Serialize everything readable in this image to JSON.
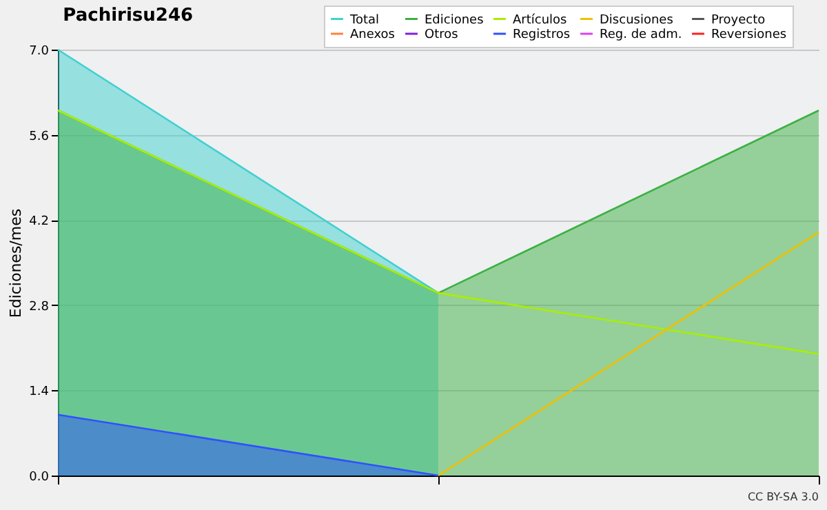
{
  "chart_data": {
    "type": "line",
    "title": "Pachirisu246",
    "ylabel": "Ediciones/mes",
    "categories": [
      null,
      null,
      null
    ],
    "series": [
      {
        "name": "Total",
        "color": "#40d0d0",
        "type": "area",
        "values": [
          7,
          3,
          null
        ]
      },
      {
        "name": "Ediciones",
        "color": "#3cb043",
        "type": "area",
        "values": [
          6,
          3,
          6
        ]
      },
      {
        "name": "Artículos",
        "color": "#aaee00",
        "values": [
          6,
          3,
          2
        ]
      },
      {
        "name": "Discusiones",
        "color": "#f0c000",
        "values": [
          null,
          0,
          4
        ]
      },
      {
        "name": "Proyecto",
        "color": "#555555",
        "values": [
          null,
          null,
          null
        ]
      },
      {
        "name": "Anexos",
        "color": "#ff8040",
        "values": [
          null,
          null,
          null
        ]
      },
      {
        "name": "Otros",
        "color": "#8020e0",
        "values": [
          null,
          null,
          null
        ]
      },
      {
        "name": "Registros",
        "color": "#3050ff",
        "type": "area",
        "values": [
          1,
          0,
          null
        ]
      },
      {
        "name": "Reg. de adm.",
        "color": "#e040f0",
        "values": [
          null,
          null,
          null
        ]
      },
      {
        "name": "Reversiones",
        "color": "#ff2020",
        "values": [
          null,
          null,
          null
        ]
      }
    ],
    "ylim": [
      0,
      7
    ],
    "yticks": [
      {
        "value": 0,
        "label": "0.0"
      },
      {
        "value": 1.4,
        "label": "1.4"
      },
      {
        "value": 2.8,
        "label": "2.8"
      },
      {
        "value": 4.2,
        "label": "4.2"
      },
      {
        "value": 5.6,
        "label": "5.6"
      },
      {
        "value": 7,
        "label": "7.0"
      }
    ],
    "grid": "y",
    "legend": "top right",
    "annotations": [
      "CC BY-SA 3.0"
    ]
  }
}
